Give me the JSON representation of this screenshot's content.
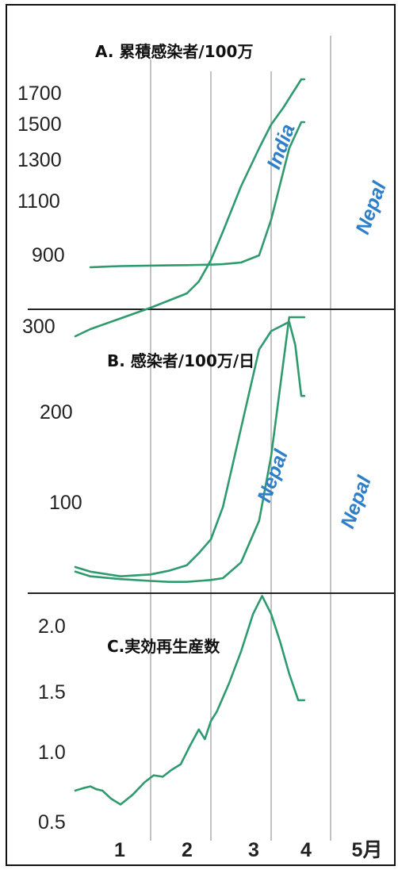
{
  "colors": {
    "line": "#2e9a6e",
    "label": "#2f7fc8",
    "grid": "#9a9a9a",
    "divider": "#222222",
    "frame": "#111111"
  },
  "x_axis_labels": [
    "1",
    "2",
    "3",
    "4",
    "5月"
  ],
  "chart_data": [
    {
      "type": "line",
      "title": "A. 累積感染者/100万",
      "xlabel": "",
      "ylabel": "",
      "yticks": [
        "1700",
        "1500",
        "1300",
        "1100",
        "900"
      ],
      "grid": "vertical month lines",
      "series": [
        {
          "label": "India",
          "x": [
            1.0,
            1.5,
            2.0,
            2.3,
            2.6,
            2.8,
            3.0,
            3.2,
            3.5,
            3.8,
            4.0,
            4.3,
            4.5,
            4.55
          ],
          "y": [
            950,
            955,
            957,
            958,
            959,
            960,
            961,
            963,
            970,
            1000,
            1150,
            1450,
            1560,
            1560
          ]
        },
        {
          "label": "Nepal",
          "x": [
            0.75,
            1.0,
            1.5,
            2.0,
            2.3,
            2.6,
            2.8,
            3.0,
            3.2,
            3.5,
            3.8,
            4.0,
            4.2,
            4.5,
            4.55
          ],
          "y": [
            660,
            690,
            735,
            780,
            810,
            840,
            890,
            980,
            1100,
            1290,
            1450,
            1550,
            1620,
            1740,
            1740
          ]
        }
      ]
    },
    {
      "type": "line",
      "title": "B. 感染者/100万/日",
      "xlabel": "",
      "ylabel": "",
      "yticks": [
        "300",
        "200",
        "100"
      ],
      "grid": "vertical month lines",
      "series": [
        {
          "label": "Nepal",
          "x": [
            0.75,
            1.0,
            1.5,
            2.0,
            2.3,
            2.6,
            2.8,
            3.0,
            3.2,
            3.5,
            3.8,
            4.0,
            4.3,
            4.4,
            4.5,
            4.55
          ],
          "y": [
            30,
            25,
            20,
            22,
            26,
            32,
            45,
            60,
            95,
            180,
            265,
            285,
            295,
            270,
            215,
            215
          ]
        },
        {
          "label": "Nepal",
          "x": [
            0.75,
            1.0,
            1.5,
            2.0,
            2.3,
            2.6,
            2.8,
            3.0,
            3.2,
            3.5,
            3.8,
            4.0,
            4.2,
            4.3,
            4.45,
            4.55
          ],
          "y": [
            25,
            20,
            17,
            15,
            14,
            14,
            15,
            16,
            18,
            35,
            80,
            150,
            250,
            300,
            300,
            300
          ]
        }
      ]
    },
    {
      "type": "line",
      "title": "C.実効再生産数",
      "xlabel": "",
      "ylabel": "",
      "yticks": [
        "2.0",
        "1.5",
        "1.0",
        "0.5"
      ],
      "grid": "vertical month lines",
      "series": [
        {
          "x": [
            0.75,
            0.9,
            1.0,
            1.1,
            1.2,
            1.35,
            1.5,
            1.7,
            1.9,
            2.05,
            2.2,
            2.35,
            2.5,
            2.65,
            2.8,
            2.9,
            3.0,
            3.1,
            3.3,
            3.5,
            3.7,
            3.85,
            4.0,
            4.15,
            4.3,
            4.45,
            4.55
          ],
          "y": [
            0.78,
            0.8,
            0.81,
            0.79,
            0.78,
            0.72,
            0.68,
            0.75,
            0.84,
            0.89,
            0.88,
            0.93,
            0.97,
            1.1,
            1.22,
            1.15,
            1.28,
            1.35,
            1.55,
            1.78,
            2.05,
            2.18,
            2.05,
            1.85,
            1.62,
            1.43,
            1.43
          ]
        }
      ]
    }
  ]
}
